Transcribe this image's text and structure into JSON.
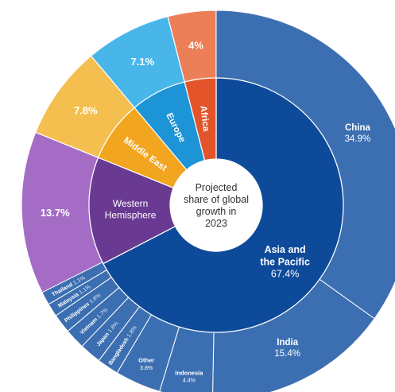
{
  "chart_data": {
    "type": "sunburst",
    "center_label": [
      "Projected",
      "share of global",
      "growth in",
      "2023"
    ],
    "colors": {
      "asia_inner": "#0d4a9a",
      "asia_outer": "#3c6fb1",
      "western": "#6a3a92",
      "western_outer": "#a56cc6",
      "middle_east": "#f2a51f",
      "middle_east_outer": "#f4bf4f",
      "europe": "#1c94d6",
      "europe_outer": "#49b6ea",
      "africa": "#e4542a",
      "africa_outer": "#ec7f57",
      "separator": "#ffffff"
    },
    "regions": [
      {
        "name": "Asia and\nthe Pacific",
        "value": 67.4,
        "value_label": "67.4%"
      },
      {
        "name": "Western\nHemisphere",
        "value": 13.7,
        "value_label": "13.7%"
      },
      {
        "name": "Middle East",
        "value": 7.8,
        "value_label": "7.8%"
      },
      {
        "name": "Europe",
        "value": 7.1,
        "value_label": "7.1%"
      },
      {
        "name": "Africa",
        "value": 4.0,
        "value_label": "4%"
      }
    ],
    "asia_breakdown": [
      {
        "name": "China",
        "value": 34.9,
        "value_label": "34.9%"
      },
      {
        "name": "India",
        "value": 15.4,
        "value_label": "15.4%"
      },
      {
        "name": "Indonesia",
        "value": 4.4,
        "value_label": "4.4%"
      },
      {
        "name": "Other",
        "value": 3.8,
        "value_label": "3.8%"
      },
      {
        "name": "Bangladesh",
        "value": 1.8,
        "value_label": "1.8%"
      },
      {
        "name": "Japan",
        "value": 1.8,
        "value_label": "1.8%"
      },
      {
        "name": "Vietnam",
        "value": 1.7,
        "value_label": "1.7%"
      },
      {
        "name": "Philippines",
        "value": 1.6,
        "value_label": "1.6%"
      },
      {
        "name": "Malaysia",
        "value": 1.1,
        "value_label": "1.1%"
      },
      {
        "name": "Thailand",
        "value": 1.1,
        "value_label": "1.1%"
      }
    ]
  }
}
